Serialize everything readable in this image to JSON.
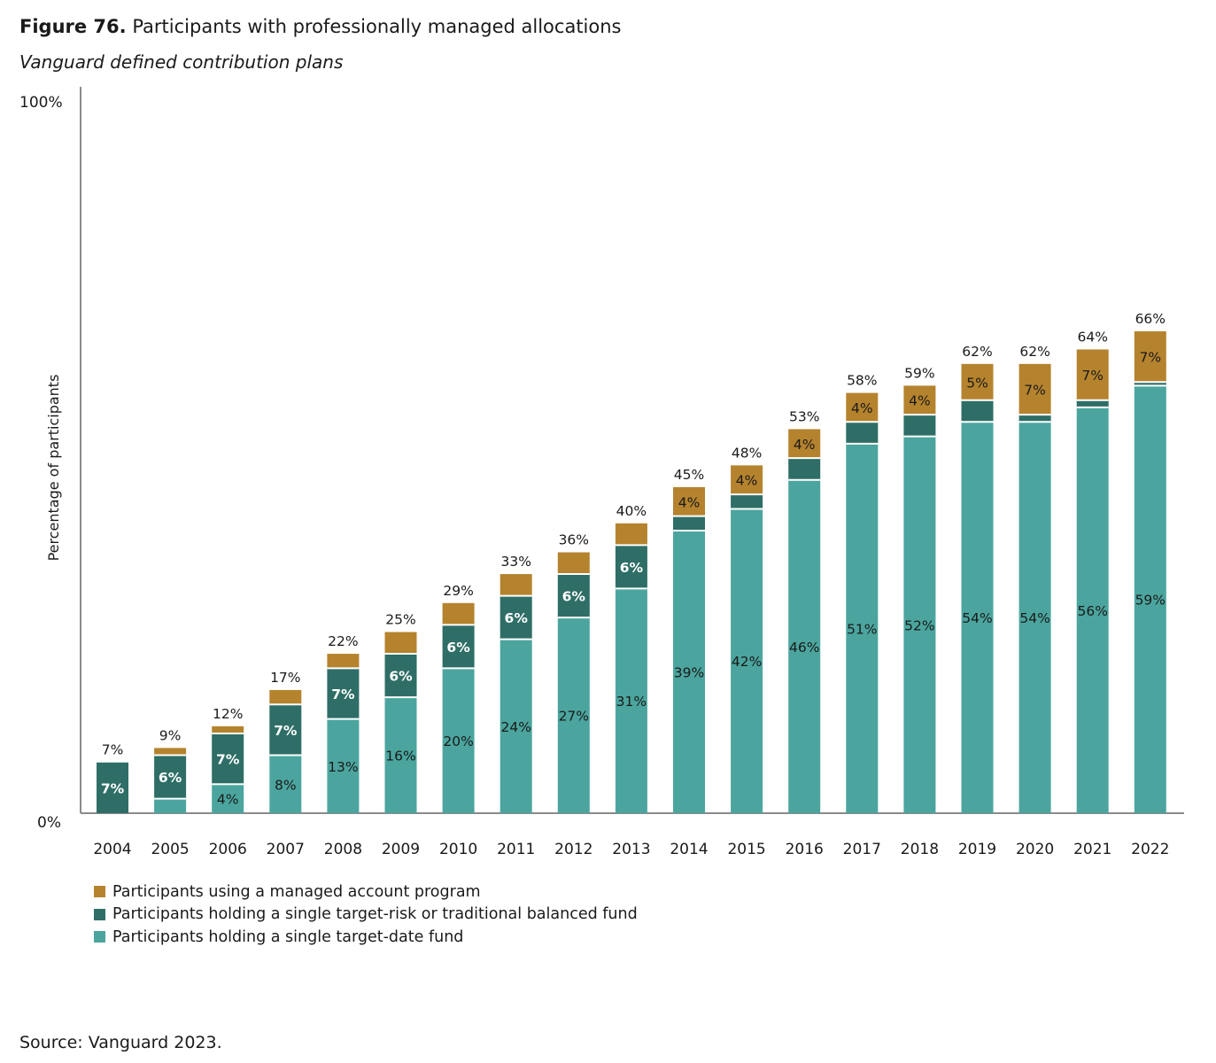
{
  "header": {
    "figure_label": "Figure 76.",
    "title": "Participants with professionally managed allocations",
    "subtitle": "Vanguard defined contribution plans"
  },
  "source": "Source: Vanguard 2023.",
  "colors": {
    "managed_account": "#B5832E",
    "target_risk": "#2E6E66",
    "target_date": "#4BA59E"
  },
  "legend": [
    {
      "label": "Participants using a managed account program",
      "color": "#B5832E"
    },
    {
      "label": "Participants holding a single target-risk or traditional balanced fund",
      "color": "#2E6E66"
    },
    {
      "label": "Participants holding a single target-date fund",
      "color": "#4BA59E"
    }
  ],
  "chart_data": {
    "type": "bar",
    "stacked": true,
    "title": "Participants with professionally managed allocations",
    "ylabel": "Percentage of participants",
    "ylim": [
      0,
      100
    ],
    "y_tick_labels": [
      "0%",
      "100%"
    ],
    "categories": [
      "2004",
      "2005",
      "2006",
      "2007",
      "2008",
      "2009",
      "2010",
      "2011",
      "2012",
      "2013",
      "2014",
      "2015",
      "2016",
      "2017",
      "2018",
      "2019",
      "2020",
      "2021",
      "2022"
    ],
    "totals": [
      7,
      9,
      12,
      17,
      22,
      25,
      29,
      33,
      36,
      40,
      45,
      48,
      53,
      58,
      59,
      62,
      62,
      64,
      66
    ],
    "total_labels": [
      "7%",
      "9%",
      "12%",
      "17%",
      "22%",
      "25%",
      "29%",
      "33%",
      "36%",
      "40%",
      "45%",
      "48%",
      "53%",
      "58%",
      "59%",
      "62%",
      "62%",
      "64%",
      "66%"
    ],
    "series": [
      {
        "name": "Participants holding a single target-date fund",
        "values": [
          0,
          2,
          4,
          8,
          13,
          16,
          20,
          24,
          27,
          31,
          39,
          42,
          46,
          51,
          52,
          54,
          54,
          56,
          59
        ],
        "labels": [
          "",
          "",
          "4%",
          "8%",
          "13%",
          "16%",
          "20%",
          "24%",
          "27%",
          "31%",
          "39%",
          "42%",
          "46%",
          "51%",
          "52%",
          "54%",
          "54%",
          "56%",
          "59%"
        ]
      },
      {
        "name": "Participants holding a single target-risk or traditional balanced fund",
        "values": [
          7,
          6,
          7,
          7,
          7,
          6,
          6,
          6,
          6,
          6,
          2,
          2,
          3,
          3,
          3,
          3,
          1,
          1,
          0.5
        ],
        "labels": [
          "7%",
          "6%",
          "7%",
          "7%",
          "7%",
          "6%",
          "6%",
          "6%",
          "6%",
          "6%",
          "",
          "",
          "",
          "",
          "",
          "",
          "",
          "",
          ""
        ]
      },
      {
        "name": "Participants using a managed account program",
        "values": [
          0,
          1,
          1,
          2,
          2,
          3,
          3,
          3,
          3,
          3,
          4,
          4,
          4,
          4,
          4,
          5,
          7,
          7,
          7
        ],
        "labels": [
          "",
          "",
          "",
          "",
          "",
          "",
          "",
          "",
          "",
          "",
          "4%",
          "4%",
          "4%",
          "4%",
          "4%",
          "5%",
          "7%",
          "7%",
          "7%"
        ]
      }
    ],
    "grid": false,
    "legend_position": "bottom-left"
  }
}
